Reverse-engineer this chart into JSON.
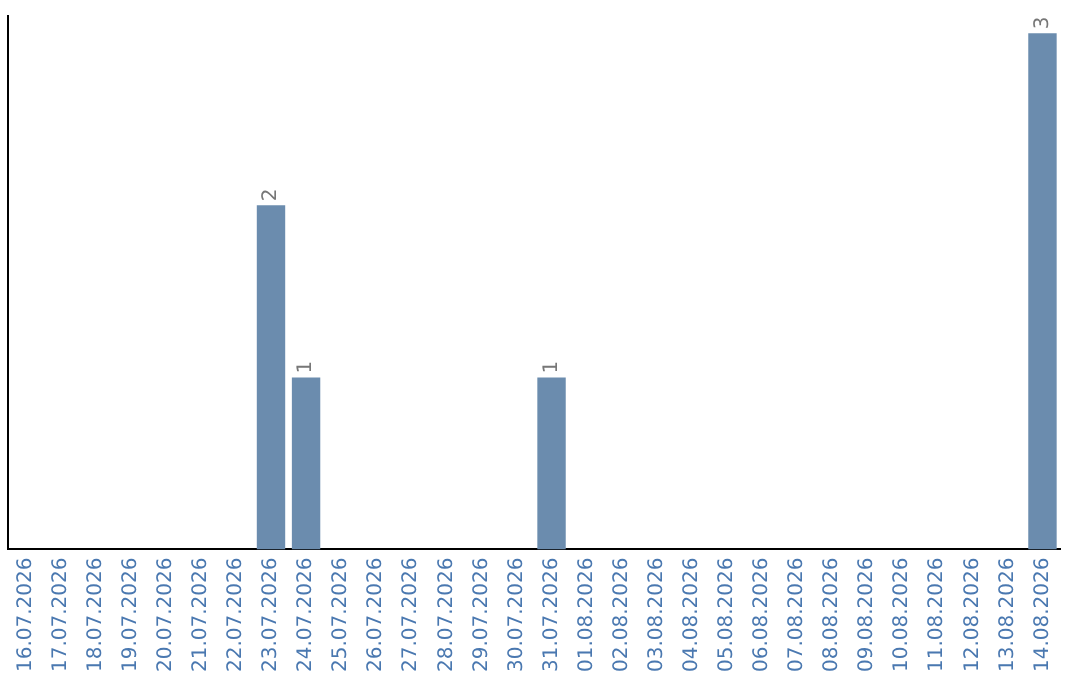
{
  "chart_data": {
    "type": "bar",
    "categories": [
      "16.07.2026",
      "17.07.2026",
      "18.07.2026",
      "19.07.2026",
      "20.07.2026",
      "21.07.2026",
      "22.07.2026",
      "23.07.2026",
      "24.07.2026",
      "25.07.2026",
      "26.07.2026",
      "27.07.2026",
      "28.07.2026",
      "29.07.2026",
      "30.07.2026",
      "31.07.2026",
      "01.08.2026",
      "02.08.2026",
      "03.08.2026",
      "04.08.2026",
      "05.08.2026",
      "06.08.2026",
      "07.08.2026",
      "08.08.2026",
      "09.08.2026",
      "10.08.2026",
      "11.08.2026",
      "12.08.2026",
      "13.08.2026",
      "14.08.2026"
    ],
    "values": [
      0,
      0,
      0,
      0,
      0,
      0,
      0,
      2,
      1,
      0,
      0,
      0,
      0,
      0,
      0,
      1,
      0,
      0,
      0,
      0,
      0,
      0,
      0,
      0,
      0,
      0,
      0,
      0,
      0,
      3
    ],
    "value_labels": [
      null,
      null,
      null,
      null,
      null,
      null,
      null,
      "2",
      "1",
      null,
      null,
      null,
      null,
      null,
      null,
      "1",
      null,
      null,
      null,
      null,
      null,
      null,
      null,
      null,
      null,
      null,
      null,
      null,
      null,
      "3"
    ],
    "color": "#6b8cae",
    "ylim": [
      0,
      3.1
    ],
    "tick_labels": "x",
    "grid": false,
    "legend": false
  }
}
